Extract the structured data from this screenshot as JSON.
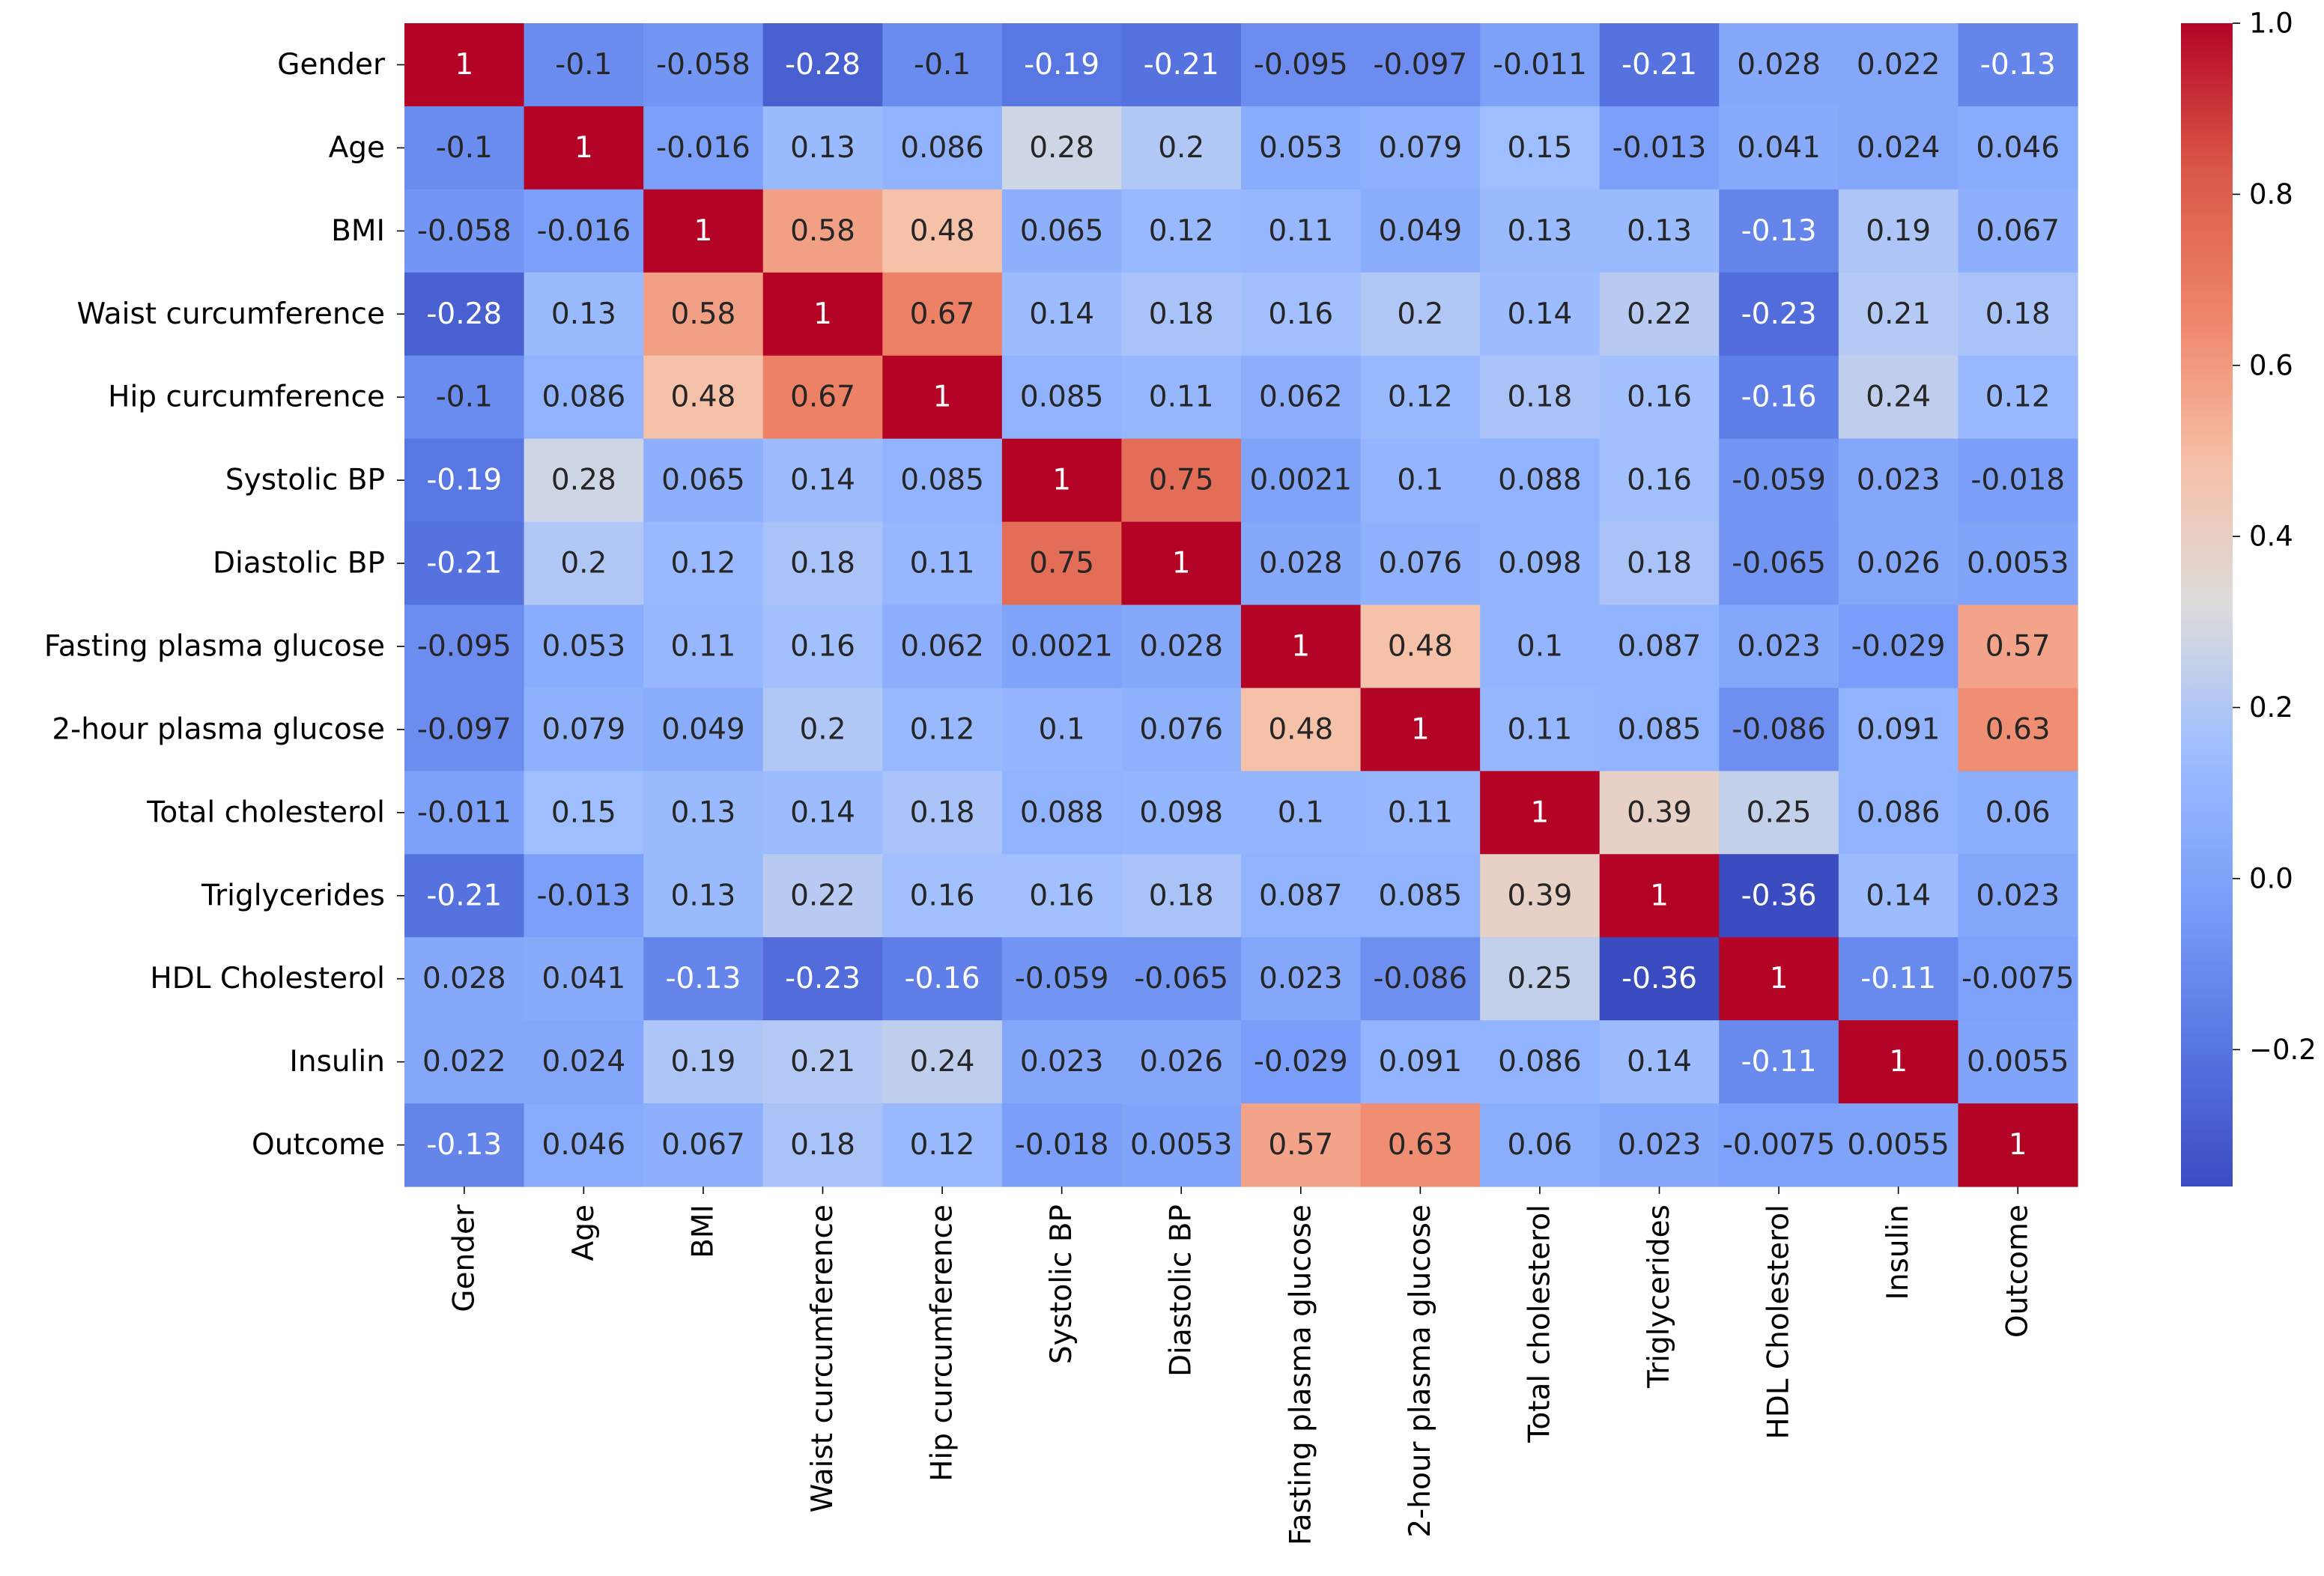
{
  "chart_data": {
    "type": "heatmap",
    "title": "",
    "colormap": "coolwarm",
    "vmin": -0.36,
    "vmax": 1.0,
    "labels": [
      "Gender",
      "Age",
      "BMI",
      "Waist curcumference",
      "Hip curcumference",
      "Systolic BP",
      "Diastolic BP",
      "Fasting plasma glucose",
      "2-hour plasma glucose",
      "Total cholesterol",
      "Triglycerides",
      "HDL Cholesterol",
      "Insulin",
      "Outcome"
    ],
    "values": [
      [
        1,
        -0.1,
        -0.058,
        -0.28,
        -0.1,
        -0.19,
        -0.21,
        -0.095,
        -0.097,
        -0.011,
        -0.21,
        0.028,
        0.022,
        -0.13
      ],
      [
        -0.1,
        1,
        -0.016,
        0.13,
        0.086,
        0.28,
        0.2,
        0.053,
        0.079,
        0.15,
        -0.013,
        0.041,
        0.024,
        0.046
      ],
      [
        -0.058,
        -0.016,
        1,
        0.58,
        0.48,
        0.065,
        0.12,
        0.11,
        0.049,
        0.13,
        0.13,
        -0.13,
        0.19,
        0.067
      ],
      [
        -0.28,
        0.13,
        0.58,
        1,
        0.67,
        0.14,
        0.18,
        0.16,
        0.2,
        0.14,
        0.22,
        -0.23,
        0.21,
        0.18
      ],
      [
        -0.1,
        0.086,
        0.48,
        0.67,
        1,
        0.085,
        0.11,
        0.062,
        0.12,
        0.18,
        0.16,
        -0.16,
        0.24,
        0.12
      ],
      [
        -0.19,
        0.28,
        0.065,
        0.14,
        0.085,
        1,
        0.75,
        0.0021,
        0.1,
        0.088,
        0.16,
        -0.059,
        0.023,
        -0.018
      ],
      [
        -0.21,
        0.2,
        0.12,
        0.18,
        0.11,
        0.75,
        1,
        0.028,
        0.076,
        0.098,
        0.18,
        -0.065,
        0.026,
        0.0053
      ],
      [
        -0.095,
        0.053,
        0.11,
        0.16,
        0.062,
        0.0021,
        0.028,
        1,
        0.48,
        0.1,
        0.087,
        0.023,
        -0.029,
        0.57
      ],
      [
        -0.097,
        0.079,
        0.049,
        0.2,
        0.12,
        0.1,
        0.076,
        0.48,
        1,
        0.11,
        0.085,
        -0.086,
        0.091,
        0.63
      ],
      [
        -0.011,
        0.15,
        0.13,
        0.14,
        0.18,
        0.088,
        0.098,
        0.1,
        0.11,
        1,
        0.39,
        0.25,
        0.086,
        0.06
      ],
      [
        -0.21,
        -0.013,
        0.13,
        0.22,
        0.16,
        0.16,
        0.18,
        0.087,
        0.085,
        0.39,
        1,
        -0.36,
        0.14,
        0.023
      ],
      [
        0.028,
        0.041,
        -0.13,
        -0.23,
        -0.16,
        -0.059,
        -0.065,
        0.023,
        -0.086,
        0.25,
        -0.36,
        1,
        -0.11,
        -0.0075
      ],
      [
        0.022,
        0.024,
        0.19,
        0.21,
        0.24,
        0.023,
        0.026,
        -0.029,
        0.091,
        0.086,
        0.14,
        -0.11,
        1,
        0.0055
      ],
      [
        -0.13,
        0.046,
        0.067,
        0.18,
        0.12,
        -0.018,
        0.0053,
        0.57,
        0.63,
        0.06,
        0.023,
        -0.0075,
        0.0055,
        1
      ]
    ],
    "value_labels": [
      [
        "1",
        "-0.1",
        "-0.058",
        "-0.28",
        "-0.1",
        "-0.19",
        "-0.21",
        "-0.095",
        "-0.097",
        "-0.011",
        "-0.21",
        "0.028",
        "0.022",
        "-0.13"
      ],
      [
        "-0.1",
        "1",
        "-0.016",
        "0.13",
        "0.086",
        "0.28",
        "0.2",
        "0.053",
        "0.079",
        "0.15",
        "-0.013",
        "0.041",
        "0.024",
        "0.046"
      ],
      [
        "-0.058",
        "-0.016",
        "1",
        "0.58",
        "0.48",
        "0.065",
        "0.12",
        "0.11",
        "0.049",
        "0.13",
        "0.13",
        "-0.13",
        "0.19",
        "0.067"
      ],
      [
        "-0.28",
        "0.13",
        "0.58",
        "1",
        "0.67",
        "0.14",
        "0.18",
        "0.16",
        "0.2",
        "0.14",
        "0.22",
        "-0.23",
        "0.21",
        "0.18"
      ],
      [
        "-0.1",
        "0.086",
        "0.48",
        "0.67",
        "1",
        "0.085",
        "0.11",
        "0.062",
        "0.12",
        "0.18",
        "0.16",
        "-0.16",
        "0.24",
        "0.12"
      ],
      [
        "-0.19",
        "0.28",
        "0.065",
        "0.14",
        "0.085",
        "1",
        "0.75",
        "0.0021",
        "0.1",
        "0.088",
        "0.16",
        "-0.059",
        "0.023",
        "-0.018"
      ],
      [
        "-0.21",
        "0.2",
        "0.12",
        "0.18",
        "0.11",
        "0.75",
        "1",
        "0.028",
        "0.076",
        "0.098",
        "0.18",
        "-0.065",
        "0.026",
        "0.0053"
      ],
      [
        "-0.095",
        "0.053",
        "0.11",
        "0.16",
        "0.062",
        "0.0021",
        "0.028",
        "1",
        "0.48",
        "0.1",
        "0.087",
        "0.023",
        "-0.029",
        "0.57"
      ],
      [
        "-0.097",
        "0.079",
        "0.049",
        "0.2",
        "0.12",
        "0.1",
        "0.076",
        "0.48",
        "1",
        "0.11",
        "0.085",
        "-0.086",
        "0.091",
        "0.63"
      ],
      [
        "-0.011",
        "0.15",
        "0.13",
        "0.14",
        "0.18",
        "0.088",
        "0.098",
        "0.1",
        "0.11",
        "1",
        "0.39",
        "0.25",
        "0.086",
        "0.06"
      ],
      [
        "-0.21",
        "-0.013",
        "0.13",
        "0.22",
        "0.16",
        "0.16",
        "0.18",
        "0.087",
        "0.085",
        "0.39",
        "1",
        "-0.36",
        "0.14",
        "0.023"
      ],
      [
        "0.028",
        "0.041",
        "-0.13",
        "-0.23",
        "-0.16",
        "-0.059",
        "-0.065",
        "0.023",
        "-0.086",
        "0.25",
        "-0.36",
        "1",
        "-0.11",
        "-0.0075"
      ],
      [
        "0.022",
        "0.024",
        "0.19",
        "0.21",
        "0.24",
        "0.023",
        "0.026",
        "-0.029",
        "0.091",
        "0.086",
        "0.14",
        "-0.11",
        "1",
        "0.0055"
      ],
      [
        "-0.13",
        "0.046",
        "0.067",
        "0.18",
        "0.12",
        "-0.018",
        "0.0053",
        "0.57",
        "0.63",
        "0.06",
        "0.023",
        "-0.0075",
        "0.0055",
        "1"
      ]
    ],
    "colorbar": {
      "ticks": [
        1.0,
        0.8,
        0.6,
        0.4,
        0.2,
        0.0,
        -0.2
      ],
      "tick_labels": [
        "1.0",
        "0.8",
        "0.6",
        "0.4",
        "0.2",
        "0.0",
        "−0.2"
      ]
    }
  }
}
